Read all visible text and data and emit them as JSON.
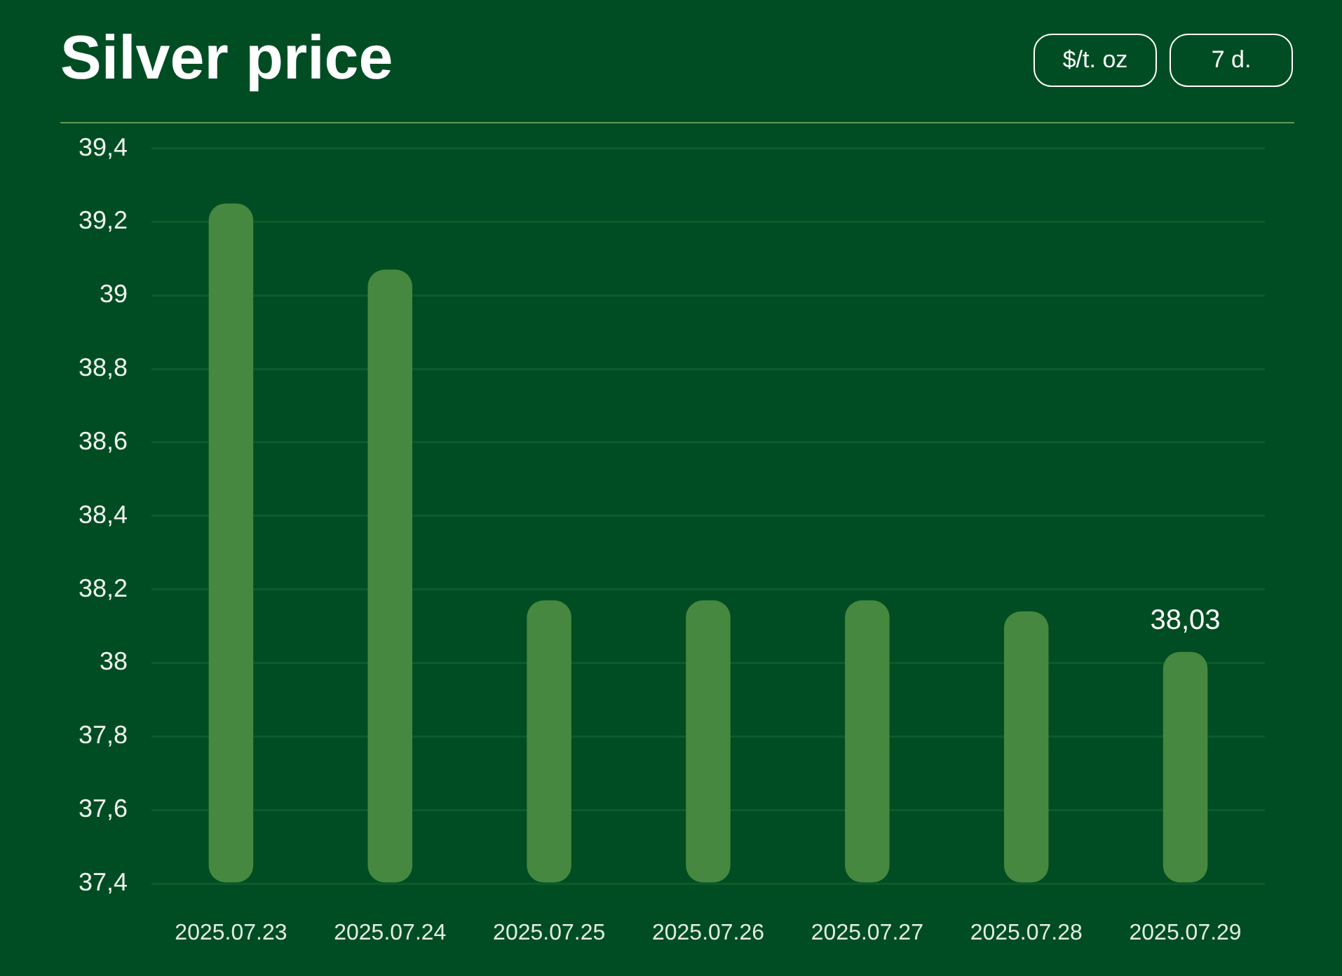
{
  "chart_data": {
    "type": "bar",
    "title": "Silver price",
    "categories": [
      "2025.07.23",
      "2025.07.24",
      "2025.07.25",
      "2025.07.26",
      "2025.07.27",
      "2025.07.28",
      "2025.07.29"
    ],
    "values": [
      39.25,
      39.07,
      38.17,
      38.17,
      38.17,
      38.14,
      38.03
    ],
    "value_labels": [
      null,
      null,
      null,
      null,
      null,
      null,
      "38,03"
    ],
    "color": "#46883f",
    "ylim": [
      37.4,
      39.4
    ],
    "yticks": [
      {
        "value": 37.4,
        "label": "37,4"
      },
      {
        "value": 37.6,
        "label": "37,6"
      },
      {
        "value": 37.8,
        "label": "37,8"
      },
      38,
      {
        "value": 38.2,
        "label": "38,2"
      },
      {
        "value": 38.4,
        "label": "38,4"
      },
      {
        "value": 38.6,
        "label": "38,6"
      },
      {
        "value": 38.8,
        "label": "38,8"
      },
      39,
      {
        "value": 39.2,
        "label": "39,2"
      },
      {
        "value": 39.4,
        "label": "39,4"
      }
    ],
    "grid": "y",
    "annotations": [
      "$/t. oz",
      "7 d."
    ]
  }
}
